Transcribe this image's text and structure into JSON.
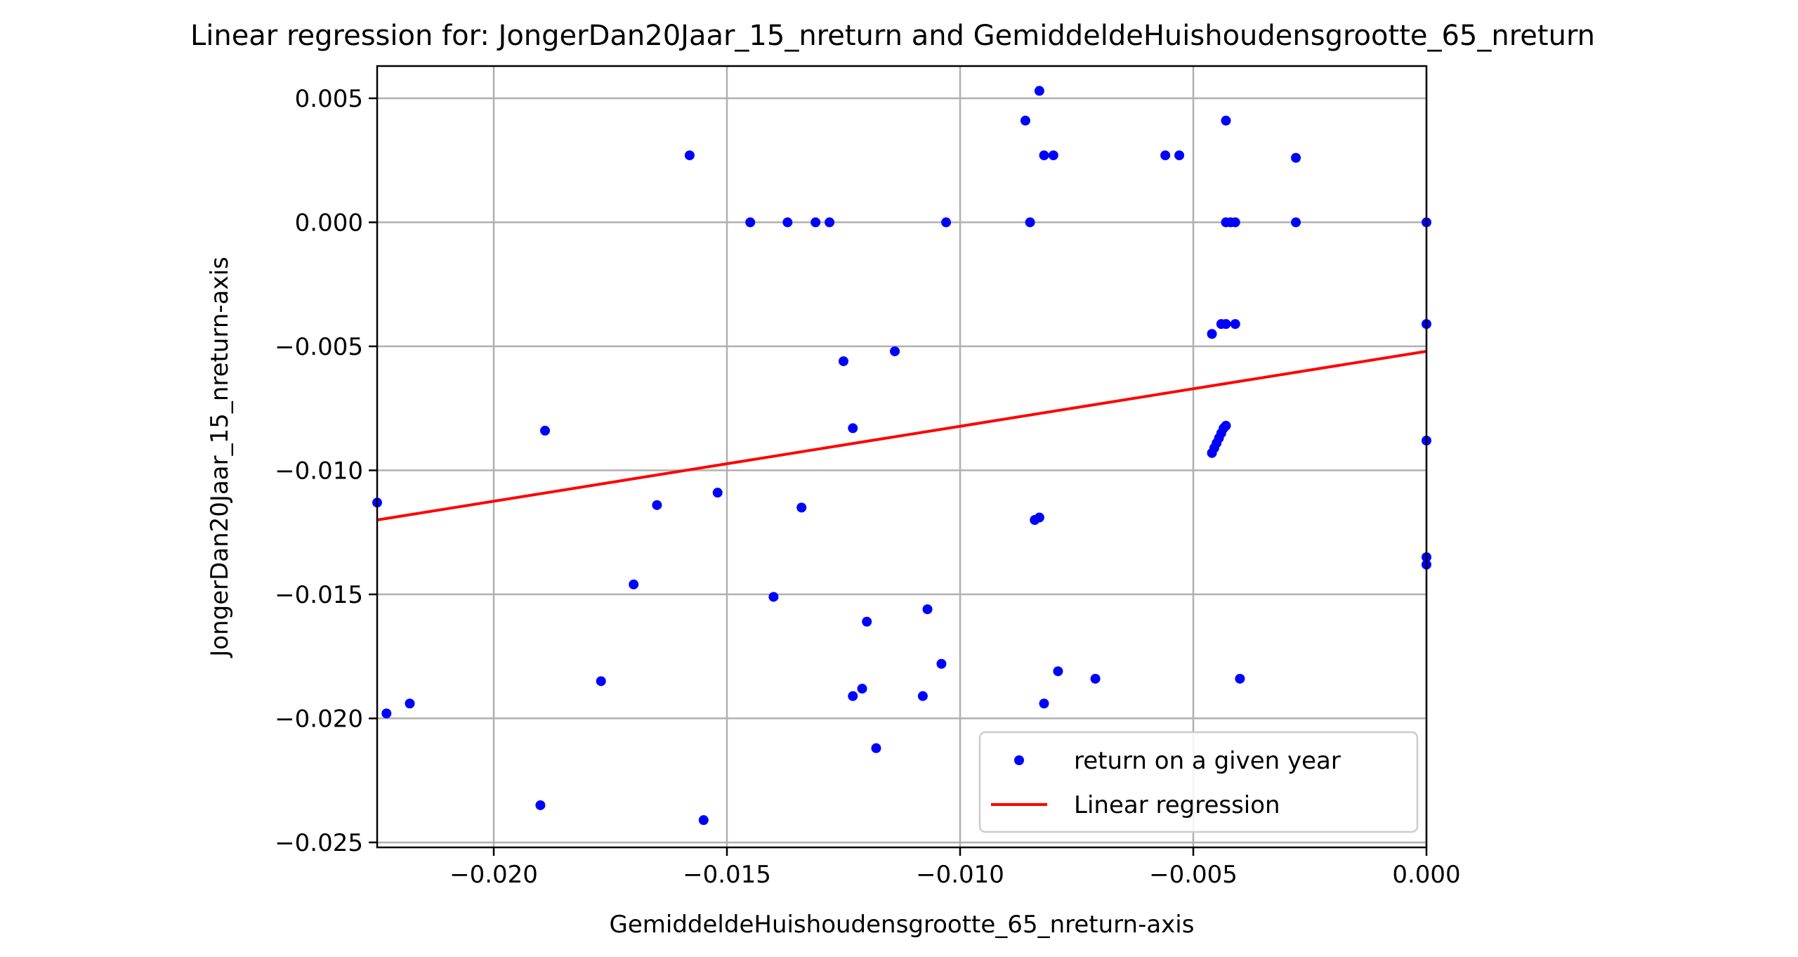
{
  "chart_data": {
    "type": "scatter",
    "title": "Linear regression for: JongerDan20Jaar_15_nreturn and GemiddeldeHuishoudensgrootte_65_nreturn",
    "xlabel": "GemiddeldeHuishoudensgrootte_65_nreturn-axis",
    "ylabel": "JongerDan20Jaar_15_nreturn-axis",
    "xlim": [
      -0.0225,
      0.0
    ],
    "ylim": [
      -0.0252,
      0.0063
    ],
    "grid": true,
    "x_ticks": [
      -0.02,
      -0.015,
      -0.01,
      -0.005,
      0.0
    ],
    "x_tick_labels": [
      "−0.020",
      "−0.015",
      "−0.010",
      "−0.005",
      "0.000"
    ],
    "y_ticks": [
      0.005,
      0.0,
      -0.005,
      -0.01,
      -0.015,
      -0.02,
      -0.025
    ],
    "y_tick_labels": [
      "0.005",
      "0.000",
      "−0.005",
      "−0.010",
      "−0.015",
      "−0.020",
      "−0.025"
    ],
    "legend": {
      "placement": "lower right",
      "entries": [
        "return on a given year",
        "Linear regression"
      ]
    },
    "colors": {
      "points": "#0000ff",
      "regression": "#ff0000",
      "grid": "#b0b0b0"
    },
    "series": [
      {
        "name": "return on a given year",
        "kind": "scatter",
        "points": [
          [
            -0.0225,
            -0.0113
          ],
          [
            -0.0223,
            -0.0198
          ],
          [
            -0.0218,
            -0.0194
          ],
          [
            -0.019,
            -0.0235
          ],
          [
            -0.0189,
            -0.0084
          ],
          [
            -0.0177,
            -0.0185
          ],
          [
            -0.017,
            -0.0146
          ],
          [
            -0.0165,
            -0.0114
          ],
          [
            -0.0158,
            0.0027
          ],
          [
            -0.0155,
            -0.0241
          ],
          [
            -0.0152,
            -0.0109
          ],
          [
            -0.0145,
            0.0
          ],
          [
            -0.014,
            -0.0151
          ],
          [
            -0.0137,
            0.0
          ],
          [
            -0.0134,
            -0.0115
          ],
          [
            -0.0131,
            0.0
          ],
          [
            -0.0128,
            0.0
          ],
          [
            -0.0125,
            -0.0056
          ],
          [
            -0.0123,
            -0.0083
          ],
          [
            -0.0123,
            -0.0191
          ],
          [
            -0.0121,
            -0.0188
          ],
          [
            -0.012,
            -0.0161
          ],
          [
            -0.0118,
            -0.0212
          ],
          [
            -0.0114,
            -0.0052
          ],
          [
            -0.0108,
            -0.0191
          ],
          [
            -0.0107,
            -0.0156
          ],
          [
            -0.0103,
            0.0
          ],
          [
            -0.0104,
            -0.0178
          ],
          [
            -0.0086,
            0.0041
          ],
          [
            -0.0085,
            0.0
          ],
          [
            -0.0084,
            -0.012
          ],
          [
            -0.0083,
            -0.0119
          ],
          [
            -0.0083,
            0.0053
          ],
          [
            -0.0082,
            0.0027
          ],
          [
            -0.008,
            0.0027
          ],
          [
            -0.0082,
            -0.0194
          ],
          [
            -0.0079,
            -0.0181
          ],
          [
            -0.0071,
            -0.0184
          ],
          [
            -0.0056,
            0.0027
          ],
          [
            -0.0053,
            0.0027
          ],
          [
            -0.0046,
            -0.0093
          ],
          [
            -0.00455,
            -0.0091
          ],
          [
            -0.0045,
            -0.0089
          ],
          [
            -0.00445,
            -0.0087
          ],
          [
            -0.0044,
            -0.0085
          ],
          [
            -0.00435,
            -0.0083
          ],
          [
            -0.0043,
            -0.0082
          ],
          [
            -0.0046,
            -0.0045
          ],
          [
            -0.0044,
            -0.0041
          ],
          [
            -0.0043,
            -0.0041
          ],
          [
            -0.0041,
            -0.0041
          ],
          [
            -0.0043,
            0.0041
          ],
          [
            -0.0043,
            0.0
          ],
          [
            -0.0042,
            0.0
          ],
          [
            -0.0041,
            0.0
          ],
          [
            -0.004,
            -0.0184
          ],
          [
            -0.0028,
            0.0026
          ],
          [
            -0.0028,
            0.0
          ],
          [
            0.0,
            0.0
          ],
          [
            0.0,
            -0.0041
          ],
          [
            0.0,
            -0.0088
          ],
          [
            0.0,
            -0.0135
          ],
          [
            0.0,
            -0.0138
          ]
        ]
      },
      {
        "name": "Linear regression",
        "kind": "line",
        "points": [
          [
            -0.0225,
            -0.012
          ],
          [
            0.0,
            -0.0052
          ]
        ]
      }
    ]
  }
}
